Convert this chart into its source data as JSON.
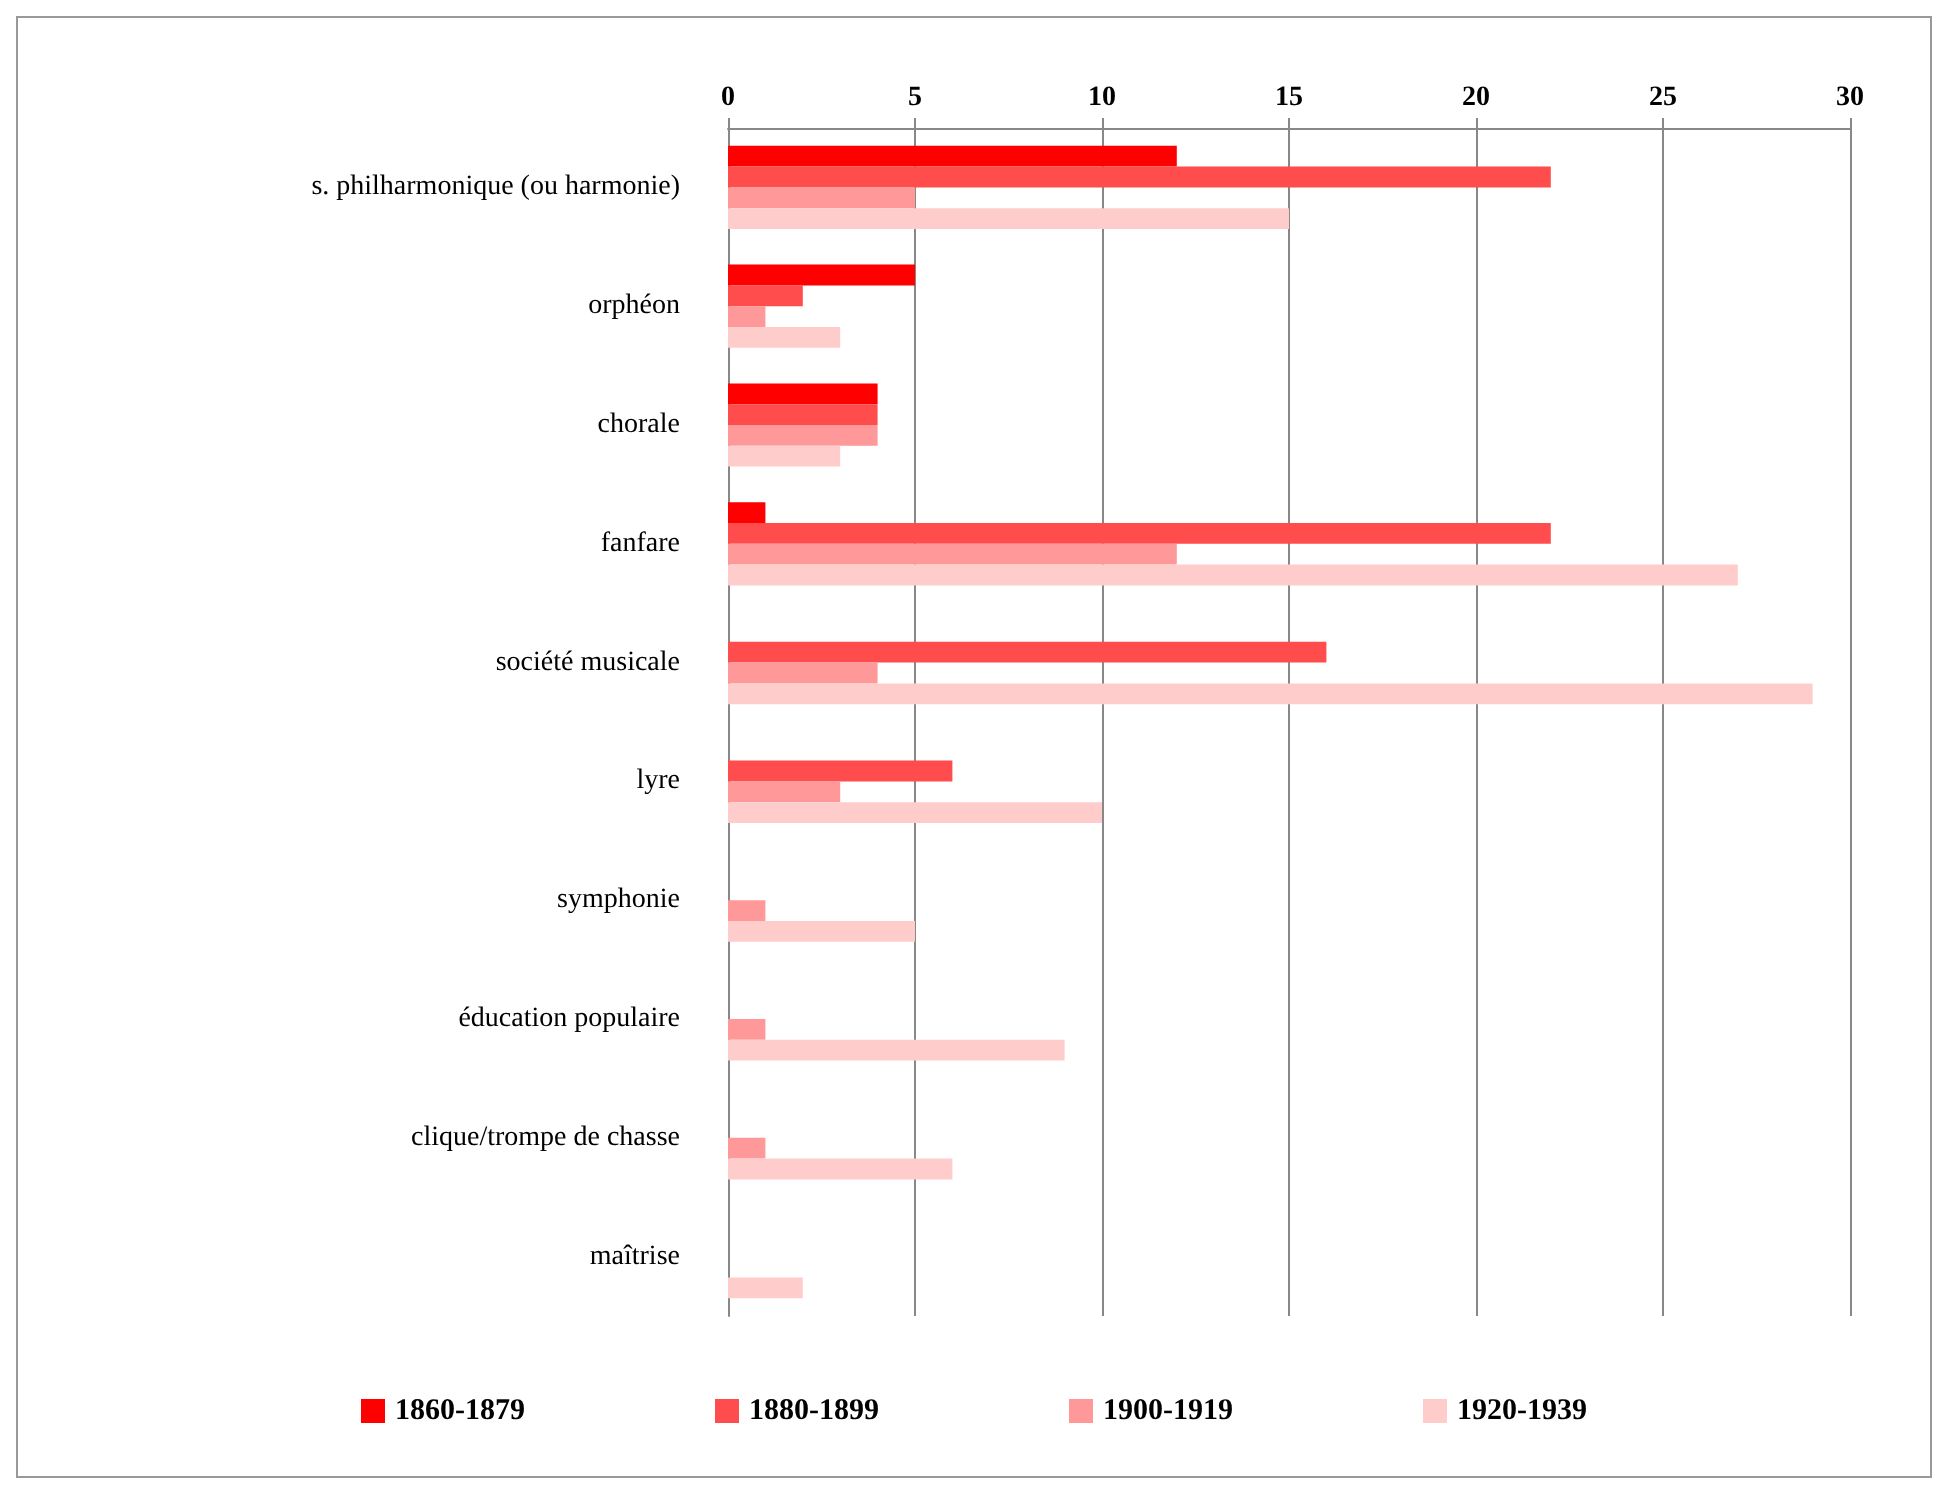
{
  "chart_data": {
    "type": "bar",
    "orientation": "horizontal",
    "categories": [
      "s. philharmonique (ou harmonie)",
      "orphéon",
      "chorale",
      "fanfare",
      "société musicale",
      "lyre",
      "symphonie",
      "éducation populaire",
      "clique/trompe de chasse",
      "maîtrise"
    ],
    "series": [
      {
        "name": "1860-1879",
        "color": "#ff0000",
        "values": [
          12,
          5,
          4,
          1,
          null,
          null,
          null,
          null,
          null,
          null
        ]
      },
      {
        "name": "1880-1899",
        "color": "#ff4d4d",
        "values": [
          22,
          2,
          4,
          22,
          16,
          6,
          null,
          null,
          null,
          null
        ]
      },
      {
        "name": "1900-1919",
        "color": "#ff9999",
        "values": [
          5,
          1,
          4,
          12,
          4,
          3,
          1,
          1,
          1,
          null
        ]
      },
      {
        "name": "1920-1939",
        "color": "#ffcccc",
        "values": [
          15,
          3,
          3,
          27,
          29,
          10,
          5,
          9,
          6,
          2
        ]
      }
    ],
    "xlim": [
      0,
      30
    ],
    "xticks": [
      0,
      5,
      10,
      15,
      20,
      25,
      30
    ],
    "grid": "x",
    "legend": "bottom"
  }
}
